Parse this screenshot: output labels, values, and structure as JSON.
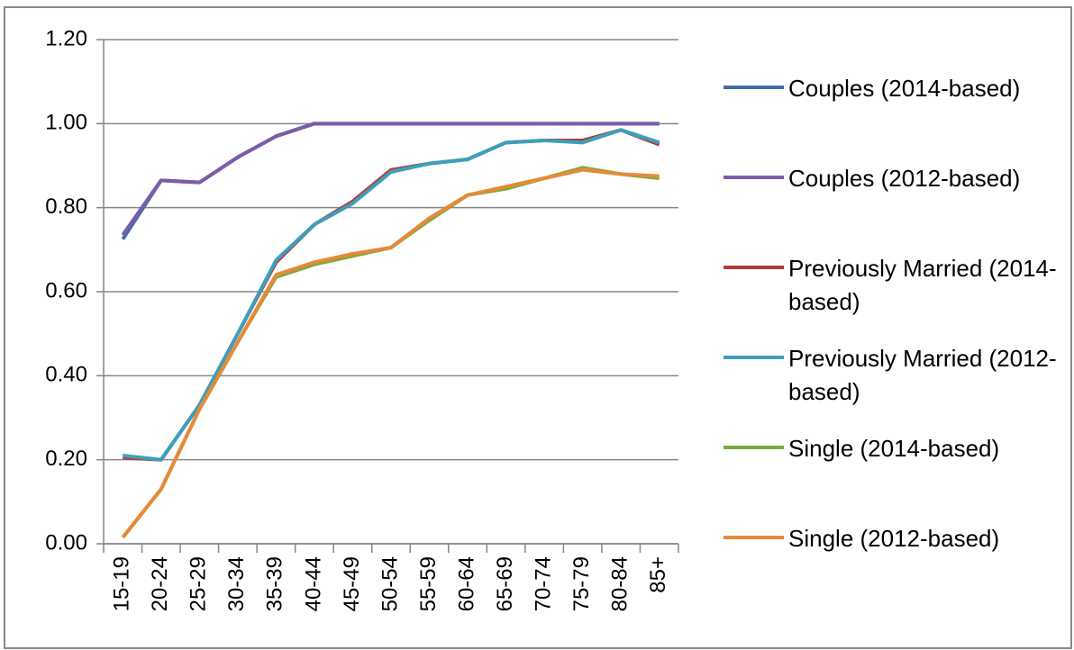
{
  "chart_data": {
    "type": "line",
    "categories": [
      "15-19",
      "20-24",
      "25-29",
      "30-34",
      "35-39",
      "40-44",
      "45-49",
      "50-54",
      "55-59",
      "60-64",
      "65-69",
      "70-74",
      "75-79",
      "80-84",
      "85+"
    ],
    "series": [
      {
        "name": "Couples (2014-based)",
        "color": "#3d6fa9",
        "values": [
          0.725,
          0.865,
          0.86,
          0.92,
          0.97,
          1.0,
          1.0,
          1.0,
          1.0,
          1.0,
          1.0,
          1.0,
          1.0,
          1.0,
          1.0
        ]
      },
      {
        "name": "Couples (2012-based)",
        "color": "#7d5ba6",
        "values": [
          0.735,
          0.865,
          0.86,
          0.92,
          0.97,
          1.0,
          1.0,
          1.0,
          1.0,
          1.0,
          1.0,
          1.0,
          1.0,
          1.0,
          1.0
        ]
      },
      {
        "name": "Previously Married (2014-based)",
        "color": "#b13c38",
        "values": [
          0.205,
          0.2,
          0.33,
          0.5,
          0.67,
          0.76,
          0.815,
          0.89,
          0.905,
          0.915,
          0.955,
          0.96,
          0.96,
          0.985,
          0.95
        ]
      },
      {
        "name": "Previously Married (2012-based)",
        "color": "#3d9fbd",
        "values": [
          0.21,
          0.2,
          0.33,
          0.5,
          0.675,
          0.76,
          0.81,
          0.885,
          0.905,
          0.915,
          0.955,
          0.96,
          0.955,
          0.985,
          0.955
        ]
      },
      {
        "name": "Single (2014-based)",
        "color": "#78ad3d",
        "values": [
          0.015,
          0.13,
          0.32,
          0.48,
          0.635,
          0.665,
          0.685,
          0.705,
          0.77,
          0.83,
          0.845,
          0.87,
          0.895,
          0.88,
          0.87
        ]
      },
      {
        "name": "Single (2012-based)",
        "color": "#e68a38",
        "values": [
          0.015,
          0.13,
          0.32,
          0.48,
          0.64,
          0.67,
          0.69,
          0.705,
          0.775,
          0.83,
          0.85,
          0.87,
          0.89,
          0.88,
          0.875
        ]
      }
    ],
    "ylim": [
      0,
      1.2
    ],
    "yticks": [
      {
        "value": 0,
        "label": "0.00"
      },
      {
        "value": 0.2,
        "label": "0.20"
      },
      {
        "value": 0.4,
        "label": "0.40"
      },
      {
        "value": 0.6,
        "label": "0.60"
      },
      {
        "value": 0.8,
        "label": "0.80"
      },
      {
        "value": 1.0,
        "label": "1.00"
      },
      {
        "value": 1.2,
        "label": "1.20"
      }
    ],
    "grid": true,
    "legend": "right"
  }
}
